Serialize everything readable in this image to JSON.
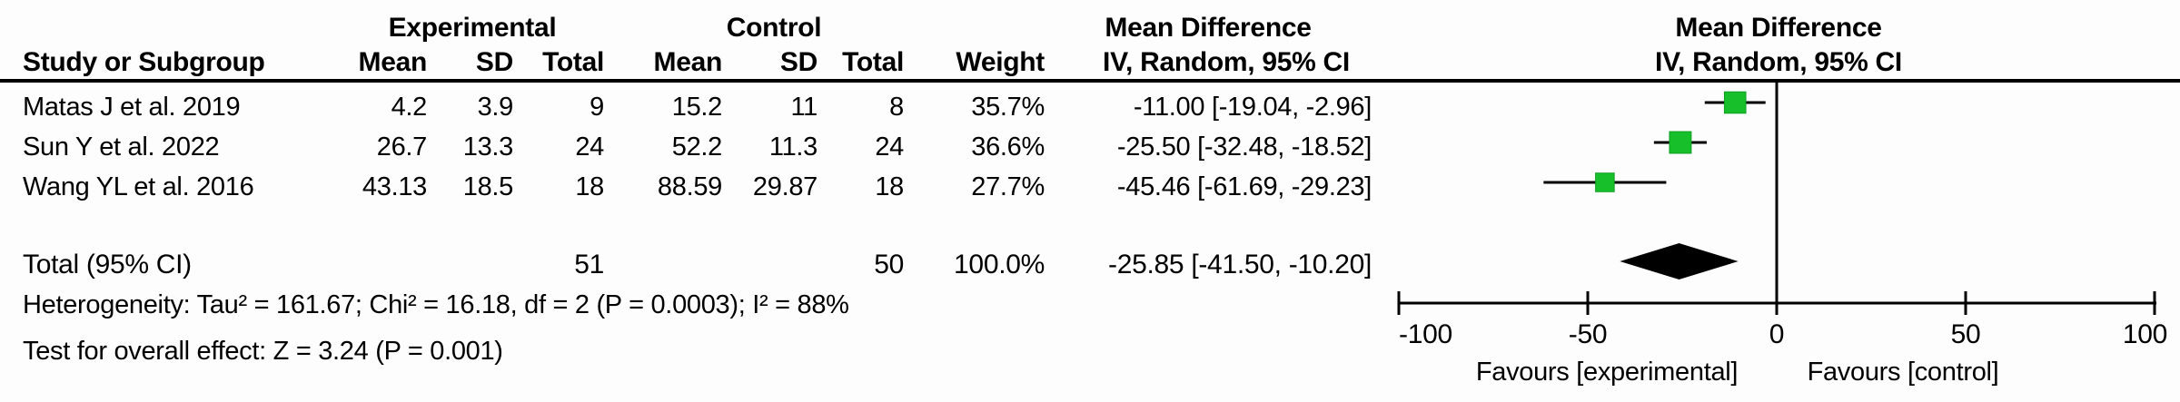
{
  "figure": {
    "header": {
      "study_col": "Study or Subgroup",
      "group_experimental": "Experimental",
      "group_control": "Control",
      "effect_title": "Mean Difference",
      "effect_subtitle": "IV, Random, 95% CI",
      "plot_title": "Mean Difference",
      "plot_subtitle": "IV, Random, 95% CI",
      "cols": [
        "Mean",
        "SD",
        "Total",
        "Mean",
        "SD",
        "Total",
        "Weight"
      ]
    },
    "rows": [
      {
        "study": "Matas J et al. 2019",
        "mean1": "4.2",
        "sd1": "3.9",
        "total1": "9",
        "mean2": "15.2",
        "sd2": "11",
        "total2": "8",
        "weight": "35.7%",
        "ci": "-11.00 [-19.04, -2.96]"
      },
      {
        "study": "Sun Y et al. 2022",
        "mean1": "26.7",
        "sd1": "13.3",
        "total1": "24",
        "mean2": "52.2",
        "sd2": "11.3",
        "total2": "24",
        "weight": "36.6%",
        "ci": "-25.50 [-32.48, -18.52]"
      },
      {
        "study": "Wang YL et al. 2016",
        "mean1": "43.13",
        "sd1": "18.5",
        "total1": "18",
        "mean2": "88.59",
        "sd2": "29.87",
        "total2": "18",
        "weight": "27.7%",
        "ci": "-45.46 [-61.69, -29.23]"
      }
    ],
    "total": {
      "label": "Total (95% CI)",
      "total1": "51",
      "total2": "50",
      "weight": "100.0%",
      "ci": "-25.85 [-41.50, -10.20]"
    },
    "heterogeneity": "Heterogeneity: Tau² = 161.67; Chi² = 16.18, df = 2 (P = 0.0003); I² = 88%",
    "overall_effect": "Test for overall effect: Z = 3.24 (P = 0.001)"
  },
  "chart_data": {
    "type": "scatter",
    "subtype": "forest-plot",
    "effect_measure": "Mean Difference, IV, Random, 95% CI",
    "x_axis": {
      "min": -100,
      "max": 100,
      "ticks": [
        -100,
        -50,
        0,
        50,
        100
      ],
      "tick_labels": [
        "-100",
        "-50",
        "0",
        "50",
        "100"
      ],
      "label_left": "Favours [experimental]",
      "label_right": "Favours [control]"
    },
    "studies": [
      {
        "name": "Matas J et al. 2019",
        "md": -11.0,
        "ci_low": -19.04,
        "ci_high": -2.96,
        "weight_pct": 35.7
      },
      {
        "name": "Sun Y et al. 2022",
        "md": -25.5,
        "ci_low": -32.48,
        "ci_high": -18.52,
        "weight_pct": 36.6
      },
      {
        "name": "Wang YL et al. 2016",
        "md": -45.46,
        "ci_low": -61.69,
        "ci_high": -29.23,
        "weight_pct": 27.7
      }
    ],
    "total": {
      "md": -25.85,
      "ci_low": -41.5,
      "ci_high": -10.2
    },
    "marker_color": "#17c02b",
    "marker_edge_color": "#0e9e20",
    "line_color": "#000000",
    "diamond_color": "#000000"
  }
}
